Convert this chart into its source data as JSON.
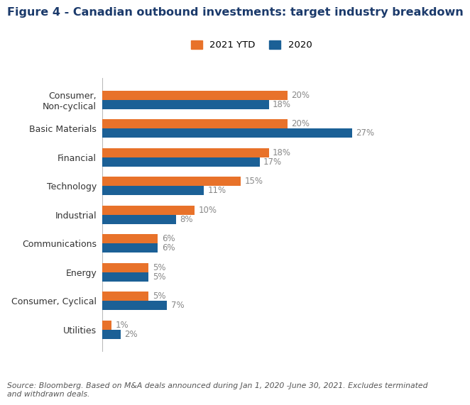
{
  "title": "Figure 4 - Canadian outbound investments: target industry breakdown",
  "categories": [
    "Consumer,\nNon-cyclical",
    "Basic Materials",
    "Financial",
    "Technology",
    "Industrial",
    "Communications",
    "Energy",
    "Consumer, Cyclical",
    "Utilities"
  ],
  "values_2021": [
    20,
    20,
    18,
    15,
    10,
    6,
    5,
    5,
    1
  ],
  "values_2020": [
    18,
    27,
    17,
    11,
    8,
    6,
    5,
    7,
    2
  ],
  "color_2021": "#E8722A",
  "color_2020": "#1B6096",
  "legend_labels": [
    "2021 YTD",
    "2020"
  ],
  "label_color": "#888888",
  "bar_height": 0.32,
  "xlim": [
    0,
    31
  ],
  "footnote": "Source: Bloomberg. Based on M&A deals announced during Jan 1, 2020 -June 30, 2021. Excludes terminated\nand withdrawn deals.",
  "background_color": "#ffffff",
  "title_fontsize": 11.5,
  "title_color": "#1B3A6B",
  "label_fontsize": 8.5,
  "tick_fontsize": 9,
  "legend_fontsize": 9.5,
  "footnote_fontsize": 7.8
}
